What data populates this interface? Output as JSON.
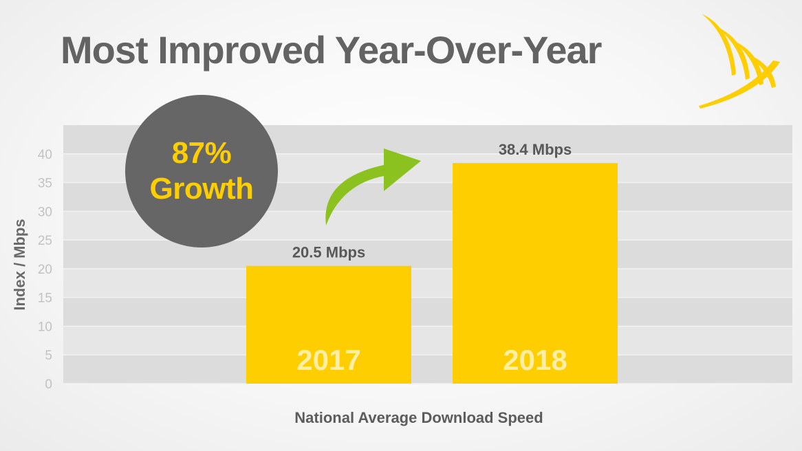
{
  "title": "Most Improved Year-Over-Year",
  "badge": {
    "line1": "87%",
    "line2": "Growth"
  },
  "logo": {
    "icon": "sprint-logo-icon",
    "color": "#FFCE00"
  },
  "colors": {
    "bar": "#FFCE00",
    "bar_label": "#FFEFA6",
    "plot_band_dark": "#DCDCDC",
    "plot_band_light": "#E6E6E6",
    "axis_text": "#C2C2C2",
    "label_text": "#585858",
    "badge": "#666666",
    "arrow": "#8CC21F"
  },
  "arrow": {
    "icon": "curved-arrow-icon"
  },
  "chart_data": {
    "type": "bar",
    "categories": [
      "2017",
      "2018"
    ],
    "values": [
      20.5,
      38.4
    ],
    "data_labels": [
      "20.5 Mbps",
      "38.4 Mbps"
    ],
    "xlabel": "National Average Download Speed",
    "ylabel": "Index / Mbps",
    "ylim": [
      0,
      45
    ],
    "yticks": [
      0,
      5,
      10,
      15,
      20,
      25,
      30,
      35,
      40
    ],
    "grid": true
  }
}
